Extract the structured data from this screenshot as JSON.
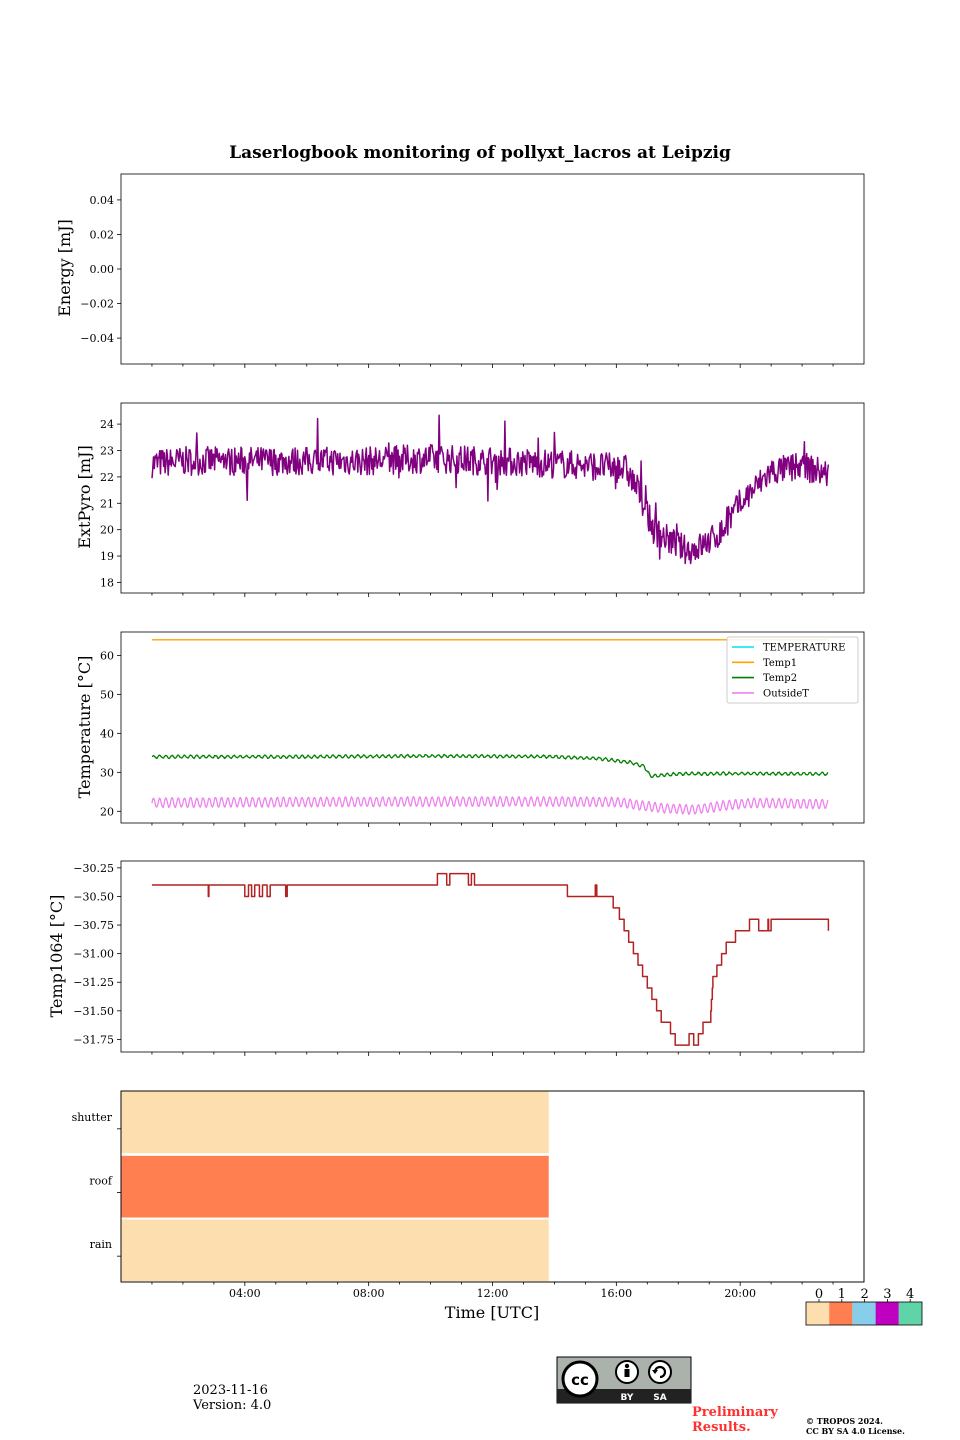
{
  "figure": {
    "title": "Laserlogbook monitoring of pollyxt_lacros at Leipzig",
    "xlabel": "Time [UTC]",
    "date": "2023-11-16",
    "version": "Version: 4.0",
    "preliminary": [
      "Preliminary",
      "Results."
    ],
    "copyright": [
      "© TROPOS 2024.",
      "CC BY SA 4.0 License."
    ],
    "license_badge": {
      "symbol": "cc",
      "labels": [
        "BY",
        "SA"
      ]
    }
  },
  "chart_data": [
    {
      "type": "line",
      "ylabel": "Energy [mJ]",
      "ylim": [
        -0.055,
        0.055
      ],
      "yticks": [
        0.04,
        0.02,
        0.0,
        -0.02,
        -0.04
      ],
      "yticklabels": [
        "0.04",
        "0.02",
        "0.00",
        "−0.02",
        "−0.04"
      ],
      "series": []
    },
    {
      "type": "line",
      "ylabel": "ExtPyro [mJ]",
      "ylim": [
        17.6,
        24.8
      ],
      "yticks": [
        24,
        23,
        22,
        21,
        20,
        19,
        18
      ],
      "yticklabels": [
        "24",
        "23",
        "22",
        "21",
        "20",
        "19",
        "18"
      ],
      "series": [
        {
          "color": "#800080",
          "noise": 0.55,
          "x": [
            1.0,
            2.0,
            4.0,
            6.0,
            8.0,
            10.0,
            12.0,
            14.0,
            15.5,
            16.3,
            16.7,
            17.2,
            17.7,
            18.3,
            18.8,
            19.4,
            20.0,
            21.0,
            22.0,
            22.85
          ],
          "y": [
            22.5,
            22.6,
            22.6,
            22.6,
            22.6,
            22.7,
            22.6,
            22.5,
            22.4,
            22.3,
            21.5,
            20.0,
            19.6,
            19.2,
            19.4,
            19.9,
            21.0,
            22.2,
            22.4,
            22.1
          ]
        }
      ]
    },
    {
      "type": "line",
      "ylabel": "Temperature [°C]",
      "ylim": [
        17.0,
        66.0
      ],
      "yticks": [
        60,
        50,
        40,
        30,
        20
      ],
      "yticklabels": [
        "60",
        "50",
        "40",
        "30",
        "20"
      ],
      "legend": {
        "loc": "upper right",
        "entries": [
          "TEMPERATURE",
          "Temp1",
          "Temp2",
          "OutsideT"
        ]
      },
      "series": [
        {
          "name": "TEMPERATURE",
          "color": "#00e5ee",
          "x": [],
          "y": []
        },
        {
          "name": "Temp1",
          "color": "#ffa500",
          "x": [
            1.0,
            22.85
          ],
          "y": [
            64.0,
            64.0
          ]
        },
        {
          "name": "Temp2",
          "color": "#008000",
          "oscillation": 0.35,
          "period": 0.2,
          "x": [
            1.0,
            6.0,
            10.0,
            14.0,
            15.5,
            16.5,
            16.9,
            17.1,
            18.0,
            20.0,
            22.85
          ],
          "y": [
            34.0,
            34.0,
            34.2,
            34.0,
            33.5,
            32.5,
            31.5,
            29.0,
            29.6,
            29.7,
            29.6
          ]
        },
        {
          "name": "OutsideT",
          "color": "#ee82ee",
          "oscillation": 1.2,
          "period": 0.2,
          "x": [
            1.0,
            6.0,
            10.0,
            14.0,
            16.0,
            16.8,
            17.5,
            18.5,
            19.5,
            20.5,
            22.85
          ],
          "y": [
            22.2,
            22.4,
            22.5,
            22.5,
            22.4,
            21.5,
            20.8,
            20.4,
            21.5,
            22.2,
            21.8
          ]
        }
      ]
    },
    {
      "type": "line",
      "ylabel": "Temp1064 [°C]",
      "ylim": [
        -31.86,
        -30.19
      ],
      "yticks": [
        -30.25,
        -30.5,
        -30.75,
        -31.0,
        -31.25,
        -31.5,
        -31.75
      ],
      "yticklabels": [
        "−30.25",
        "−30.50",
        "−30.75",
        "−31.00",
        "−31.25",
        "−31.50",
        "−31.75"
      ],
      "series": [
        {
          "color": "#b22222",
          "x": [
            1.0,
            2.8,
            2.82,
            2.84,
            4.0,
            4.0,
            4.1,
            4.12,
            4.2,
            4.22,
            4.3,
            4.32,
            4.45,
            4.47,
            4.55,
            4.57,
            4.7,
            4.72,
            4.8,
            4.82,
            5.3,
            5.32,
            5.35,
            5.37,
            10.2,
            10.22,
            10.5,
            10.52,
            10.6,
            10.62,
            10.75,
            10.77,
            11.2,
            11.22,
            11.3,
            11.32,
            11.4,
            11.42,
            14.4,
            14.42,
            15.3,
            15.32,
            15.35,
            15.37,
            15.9,
            16.1,
            16.25,
            16.4,
            16.55,
            16.7,
            16.85,
            17.0,
            17.15,
            17.3,
            17.45,
            17.6,
            17.75,
            17.9,
            18.05,
            18.2,
            18.35,
            18.5,
            18.65,
            18.8,
            19.05,
            19.07,
            19.1,
            19.12,
            19.25,
            19.4,
            19.55,
            19.7,
            19.85,
            20.0,
            20.15,
            20.3,
            20.45,
            20.6,
            20.8,
            20.82,
            20.9,
            20.92,
            21.0,
            21.5,
            21.6,
            21.62,
            21.7,
            21.72,
            22.2,
            22.8,
            22.85
          ],
          "y": [
            -30.4,
            -30.4,
            -30.5,
            -30.4,
            -30.4,
            -30.5,
            -30.5,
            -30.4,
            -30.4,
            -30.5,
            -30.5,
            -30.4,
            -30.4,
            -30.5,
            -30.5,
            -30.4,
            -30.4,
            -30.5,
            -30.5,
            -30.4,
            -30.4,
            -30.5,
            -30.5,
            -30.4,
            -30.4,
            -30.3,
            -30.3,
            -30.4,
            -30.4,
            -30.3,
            -30.3,
            -30.3,
            -30.3,
            -30.4,
            -30.4,
            -30.3,
            -30.3,
            -30.4,
            -30.4,
            -30.5,
            -30.5,
            -30.4,
            -30.4,
            -30.5,
            -30.6,
            -30.7,
            -30.8,
            -30.9,
            -31.0,
            -31.1,
            -31.2,
            -31.3,
            -31.4,
            -31.5,
            -31.6,
            -31.6,
            -31.7,
            -31.8,
            -31.8,
            -31.8,
            -31.7,
            -31.8,
            -31.7,
            -31.6,
            -31.5,
            -31.4,
            -31.3,
            -31.2,
            -31.1,
            -31.0,
            -30.9,
            -30.9,
            -30.8,
            -30.8,
            -30.8,
            -30.7,
            -30.7,
            -30.8,
            -30.8,
            -30.8,
            -30.7,
            -30.8,
            -30.7,
            -30.7,
            -30.7,
            -30.7,
            -30.7,
            -30.7,
            -30.7,
            -30.7,
            -30.8
          ]
        }
      ]
    },
    {
      "type": "heatmap",
      "rows": [
        "shutter",
        "roof",
        "rain"
      ],
      "colorbar": {
        "ticklabels": [
          "0",
          "1",
          "2",
          "3",
          "4"
        ],
        "colors": [
          "#fddeae",
          "#ff7f50",
          "#87ceeb",
          "#c000c0",
          "#5fd4a8"
        ]
      },
      "cells": [
        {
          "row": "shutter",
          "x0": 0.0,
          "x1": 13.8,
          "value": 0
        },
        {
          "row": "roof",
          "x0": 0.0,
          "x1": 13.8,
          "value": 1
        },
        {
          "row": "rain",
          "x0": 0.0,
          "x1": 13.8,
          "value": 0
        }
      ],
      "xlim": [
        0.0,
        24.0
      ],
      "xticklabels": [
        "04:00",
        "08:00",
        "12:00",
        "16:00",
        "20:00"
      ],
      "xticks": [
        4,
        8,
        12,
        16,
        20
      ]
    }
  ]
}
